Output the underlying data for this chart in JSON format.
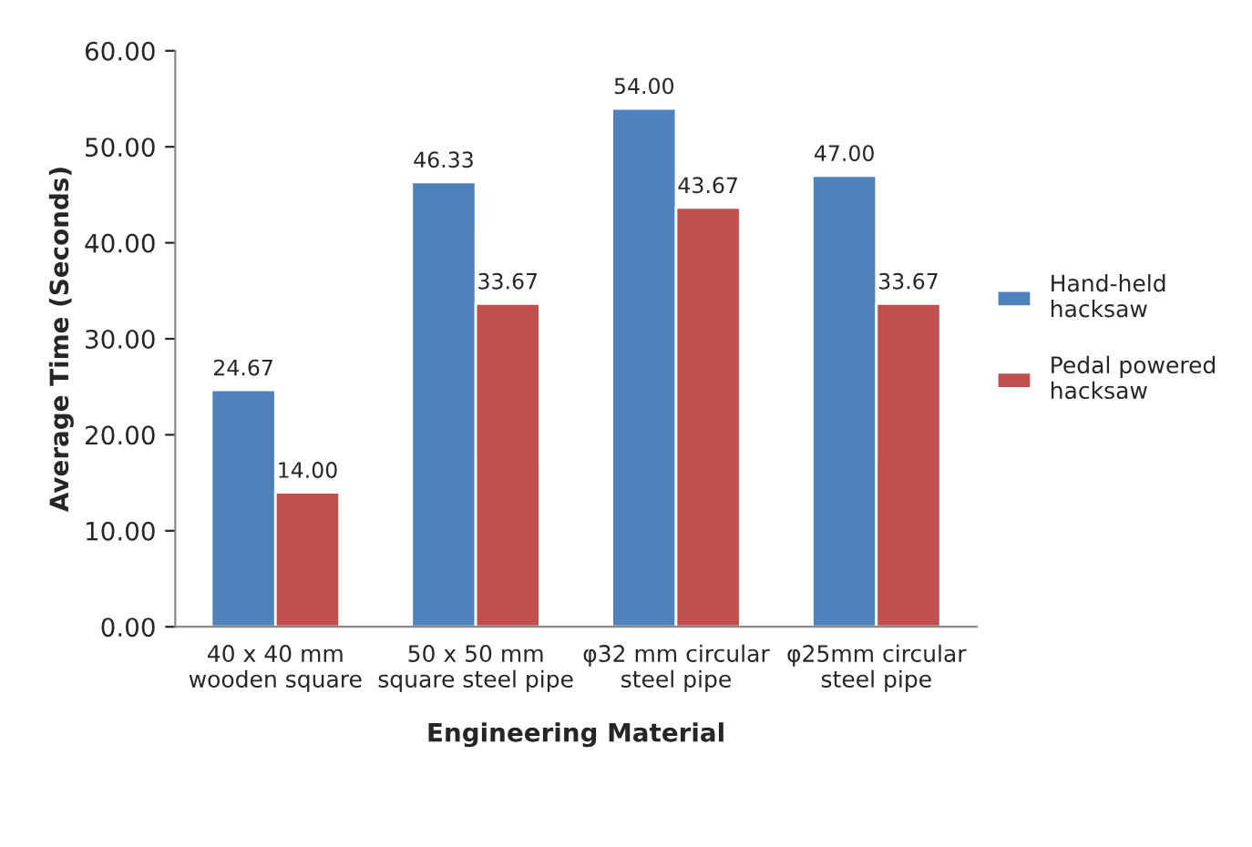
{
  "chart_data": {
    "type": "bar",
    "xlabel": "Engineering Material",
    "ylabel": "Average Time (Seconds)",
    "categories": [
      "40 x 40 mm\nwooden square",
      "50 x 50 mm\nsquare steel pipe",
      "φ32 mm circular\nsteel pipe",
      "φ25mm circular\nsteel pipe"
    ],
    "series": [
      {
        "name": "Hand-held\nhacksaw",
        "color": "#4f81bd",
        "values": [
          24.67,
          46.33,
          54,
          47
        ],
        "value_labels": [
          "24.67",
          "46.33",
          "54.00",
          "47.00"
        ]
      },
      {
        "name": "Pedal powered\nhacksaw",
        "color": "#c0504d",
        "values": [
          14,
          33.67,
          43.67,
          33.67
        ],
        "value_labels": [
          "14.00",
          "33.67",
          "43.67",
          "33.67"
        ]
      }
    ],
    "ylim": [
      0,
      60
    ],
    "yticks": [
      {
        "value": 0,
        "label": "0.00"
      },
      {
        "value": 10,
        "label": "10.00"
      },
      {
        "value": 20,
        "label": "20.00"
      },
      {
        "value": 30,
        "label": "30.00"
      },
      {
        "value": 40,
        "label": "40.00"
      },
      {
        "value": 50,
        "label": "50.00"
      },
      {
        "value": 60,
        "label": "60.00"
      }
    ],
    "grid": false,
    "legend": "right"
  }
}
